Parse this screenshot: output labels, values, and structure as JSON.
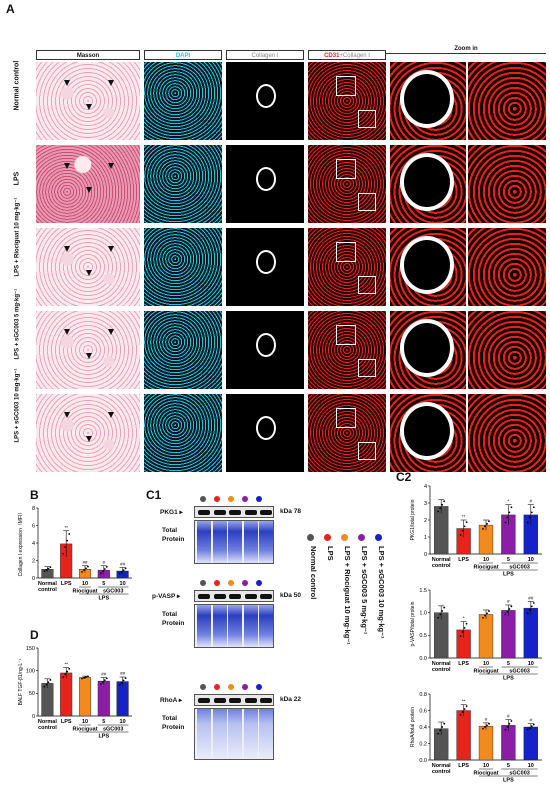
{
  "figure": {
    "panel_a": "A",
    "panel_b": "B",
    "panel_c1": "C1",
    "panel_c2": "C2",
    "panel_d": "D",
    "column_headers": [
      "Masson",
      "DAPI",
      "Collagen I",
      "CD31",
      "+Collagen I",
      "Zoom in"
    ],
    "row_labels": [
      "Normal control",
      "LPS",
      "LPS + Riociguat 10 mg·kg⁻¹",
      "LPS + sGC003 5 mg·kg⁻¹",
      "LPS + sGC003 10 mg·kg⁻¹"
    ],
    "colors": {
      "normal": "#555555",
      "lps": "#e8231b",
      "rio": "#f28a1e",
      "sgc5": "#8a1fa6",
      "sgc10": "#1422c8",
      "dapi": "#1ec4e6",
      "cd31": "#e0231b"
    }
  },
  "groups_short": [
    "Normal control",
    "LPS",
    "10",
    "5",
    "10"
  ],
  "group_brackets": {
    "riociguat": "Riociguat",
    "sgc003": "sGC003",
    "lps": "LPS"
  },
  "legend": [
    "Normal control",
    "LPS",
    "LPS + Riociguat 10 mg·kg⁻¹",
    "LPS + sGC003 5 mg·kg⁻¹",
    "LPS + sGC003 10 mg·kg⁻¹"
  ],
  "blots": [
    {
      "protein": "PKG1",
      "kda": "kDa 78",
      "total": "Total Protein"
    },
    {
      "protein": "p-VASP",
      "kda": "kDa 50",
      "total": "Total Protein"
    },
    {
      "protein": "RhoA",
      "kda": "kDa 22",
      "total": "Total Protein"
    }
  ],
  "chart_data": [
    {
      "type": "bar",
      "panel": "B",
      "ylabel": "Collagen I expression（MFI）",
      "ylim": [
        0,
        8
      ],
      "yticks": [
        0,
        2,
        4,
        6,
        8
      ],
      "categories": [
        "Normal control",
        "LPS",
        "Riociguat 10",
        "sGC003 5",
        "sGC003 10"
      ],
      "values": [
        1.0,
        3.9,
        1.0,
        0.9,
        0.8
      ],
      "errors": [
        0.3,
        1.5,
        0.4,
        0.5,
        0.4
      ],
      "annotations": [
        "",
        "**",
        "##",
        "#",
        "##"
      ]
    },
    {
      "type": "bar",
      "panel": "D",
      "ylabel": "BALF TGF-β1/ng·L⁻¹",
      "ylim": [
        0,
        150
      ],
      "yticks": [
        0,
        50,
        100,
        150
      ],
      "categories": [
        "Normal control",
        "LPS",
        "Riociguat 10",
        "sGC003 5",
        "sGC003 10"
      ],
      "values": [
        72,
        95,
        85,
        77,
        76
      ],
      "errors": [
        10,
        12,
        3,
        8,
        10
      ],
      "annotations": [
        "",
        "**",
        "",
        "##",
        "##"
      ]
    },
    {
      "type": "bar",
      "panel": "C2",
      "ylabel": "PKG1/total protein",
      "ylim": [
        0,
        4
      ],
      "yticks": [
        0,
        1,
        2,
        3,
        4
      ],
      "categories": [
        "Normal control",
        "LPS",
        "Riociguat 10",
        "sGC003 5",
        "sGC003 10"
      ],
      "values": [
        2.8,
        1.5,
        1.7,
        2.3,
        2.3
      ],
      "errors": [
        0.4,
        0.5,
        0.3,
        0.6,
        0.6
      ],
      "annotations": [
        "",
        "**",
        "",
        "*",
        "#"
      ]
    },
    {
      "type": "bar",
      "panel": "C2",
      "ylabel": "p-VASP/total protein",
      "ylim": [
        0,
        1.5
      ],
      "yticks": [
        0.0,
        0.5,
        1.0,
        1.5
      ],
      "categories": [
        "Normal control",
        "LPS",
        "Riociguat 10",
        "sGC003 5",
        "sGC003 10"
      ],
      "values": [
        1.0,
        0.62,
        0.96,
        1.05,
        1.1
      ],
      "errors": [
        0.15,
        0.18,
        0.1,
        0.12,
        0.15
      ],
      "annotations": [
        "",
        "*",
        "",
        "#",
        "##"
      ]
    },
    {
      "type": "bar",
      "panel": "C2",
      "ylabel": "RhoA/total protein",
      "ylim": [
        0,
        0.8
      ],
      "yticks": [
        0.0,
        0.2,
        0.4,
        0.6,
        0.8
      ],
      "categories": [
        "Normal control",
        "LPS",
        "Riociguat 10",
        "sGC003 5",
        "sGC003 10"
      ],
      "values": [
        0.38,
        0.6,
        0.41,
        0.42,
        0.4
      ],
      "errors": [
        0.08,
        0.07,
        0.04,
        0.07,
        0.04
      ],
      "annotations": [
        "",
        "**",
        "#",
        "#",
        "#"
      ]
    }
  ]
}
